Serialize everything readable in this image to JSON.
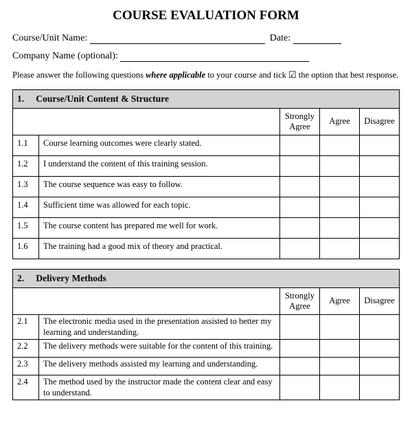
{
  "title": "COURSE EVALUATION FORM",
  "fields": {
    "course_label": "Course/Unit Name:",
    "date_label": "Date:",
    "company_label": "Company Name (optional):"
  },
  "instructions": {
    "pre": "Please answer the following questions ",
    "italic": "where applicable",
    "mid": " to your course and tick ",
    "post": " the option that best response."
  },
  "columns": {
    "c1": "Strongly Agree",
    "c2": "Agree",
    "c3": "Disagree"
  },
  "sections": [
    {
      "num": "1.",
      "title": "Course/Unit Content & Structure",
      "tight": false,
      "items": [
        {
          "n": "1.1",
          "q": "Course learning outcomes were clearly stated."
        },
        {
          "n": "1.2",
          "q": "I understand the content of this training session."
        },
        {
          "n": "1.3",
          "q": "The course sequence was easy to follow."
        },
        {
          "n": "1.4",
          "q": "Sufficient time was allowed for each topic."
        },
        {
          "n": "1.5",
          "q": "The course content has prepared me well for work."
        },
        {
          "n": "1.6",
          "q": "The training had a good mix of theory and practical."
        }
      ]
    },
    {
      "num": "2.",
      "title": "Delivery Methods",
      "tight": true,
      "items": [
        {
          "n": "2.1",
          "q": "The electronic media used in the presentation assisted to better my learning and understanding."
        },
        {
          "n": "2.2",
          "q": "The delivery methods were suitable for the content of this training."
        },
        {
          "n": "2.3",
          "q": "The delivery methods assisted my learning and understanding."
        },
        {
          "n": "2.4",
          "q": "The method used by the instructor made the content clear and easy to understand."
        }
      ]
    }
  ]
}
